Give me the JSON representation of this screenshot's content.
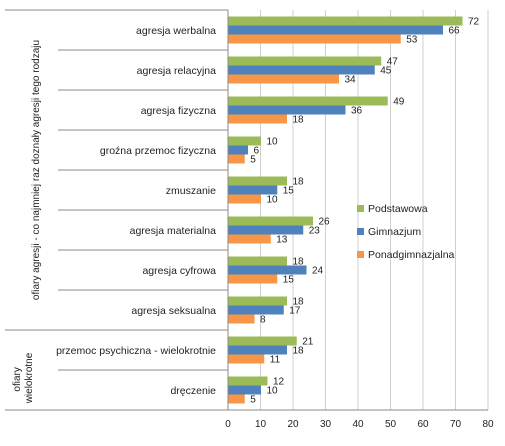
{
  "chart_data": {
    "type": "bar",
    "orientation": "horizontal",
    "categories": [
      "agresja werbalna",
      "agresja relacyjna",
      "agresja fizyczna",
      "groźna przemoc fizyczna",
      "zmuszanie",
      "agresja materialna",
      "agresja cyfrowa",
      "agresja seksualna",
      "przemoc psychiczna - wielokrotnie",
      "dręczenie"
    ],
    "series": [
      {
        "name": "Podstawowa",
        "color": "#9BBB59",
        "values": [
          72,
          47,
          49,
          10,
          18,
          26,
          18,
          18,
          21,
          12
        ]
      },
      {
        "name": "Gimnazjum",
        "color": "#4F81BD",
        "values": [
          66,
          45,
          36,
          6,
          15,
          23,
          24,
          17,
          18,
          10
        ]
      },
      {
        "name": "Ponadgimnazjalna",
        "color": "#F79646",
        "values": [
          53,
          34,
          18,
          5,
          10,
          13,
          15,
          8,
          11,
          5
        ]
      }
    ],
    "xlim": [
      0,
      80
    ],
    "xticks": [
      "0",
      "10",
      "20",
      "30",
      "40",
      "50",
      "60",
      "70",
      "80"
    ],
    "groups": [
      {
        "label": "ofiary agresji - co najmniej raz doznały agresji tego rodzaju",
        "count": 8
      },
      {
        "label_lines": [
          "ofiary",
          "wielokrotne"
        ],
        "count": 2
      }
    ],
    "legend_position": "right",
    "data_labels": true
  }
}
